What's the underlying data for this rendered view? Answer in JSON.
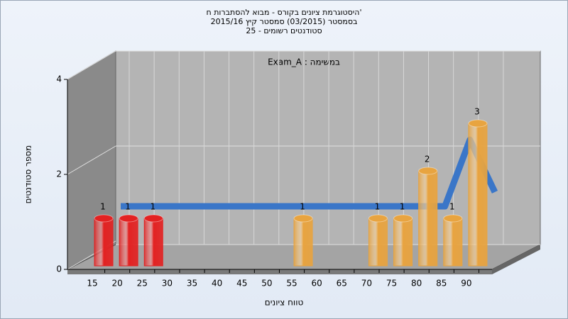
{
  "chart_data": {
    "type": "bar3d",
    "title": "היסטוגרמת ציונים בקורס - מבוא להסתברות ח'",
    "subtitle": "בסמסטר  (03/2015)  סמסטר קיץ 2015/16",
    "subtitle2": "סטודנטים רשומים - 25",
    "annotation": "Exam_A : במשימה",
    "x_label": "טווח ציונים",
    "y_label": "מספר סטודנטים",
    "categories": [
      15,
      20,
      25,
      30,
      35,
      40,
      45,
      50,
      55,
      60,
      65,
      70,
      75,
      80,
      85,
      90
    ],
    "values": [
      1,
      1,
      1,
      0,
      0,
      0,
      0,
      0,
      1,
      0,
      0,
      1,
      1,
      2,
      1,
      3
    ],
    "colors": [
      "#e32222",
      "#e32222",
      "#e32222",
      "#e8a440",
      "#e8a440",
      "#e8a440",
      "#e8a440",
      "#e8a440",
      "#e8a440",
      "#e8a440",
      "#e8a440",
      "#e8a440",
      "#e8a440",
      "#e8a440",
      "#e8a440",
      "#e8a440"
    ],
    "trend_values": [
      1,
      1,
      1,
      1,
      1,
      1,
      1,
      1,
      1,
      1,
      1,
      1,
      1,
      1,
      2.4,
      1.3
    ],
    "trend_color": "#3a76c8",
    "ylim": [
      0,
      4
    ],
    "yticks": [
      0,
      2,
      4
    ],
    "grid": true
  }
}
